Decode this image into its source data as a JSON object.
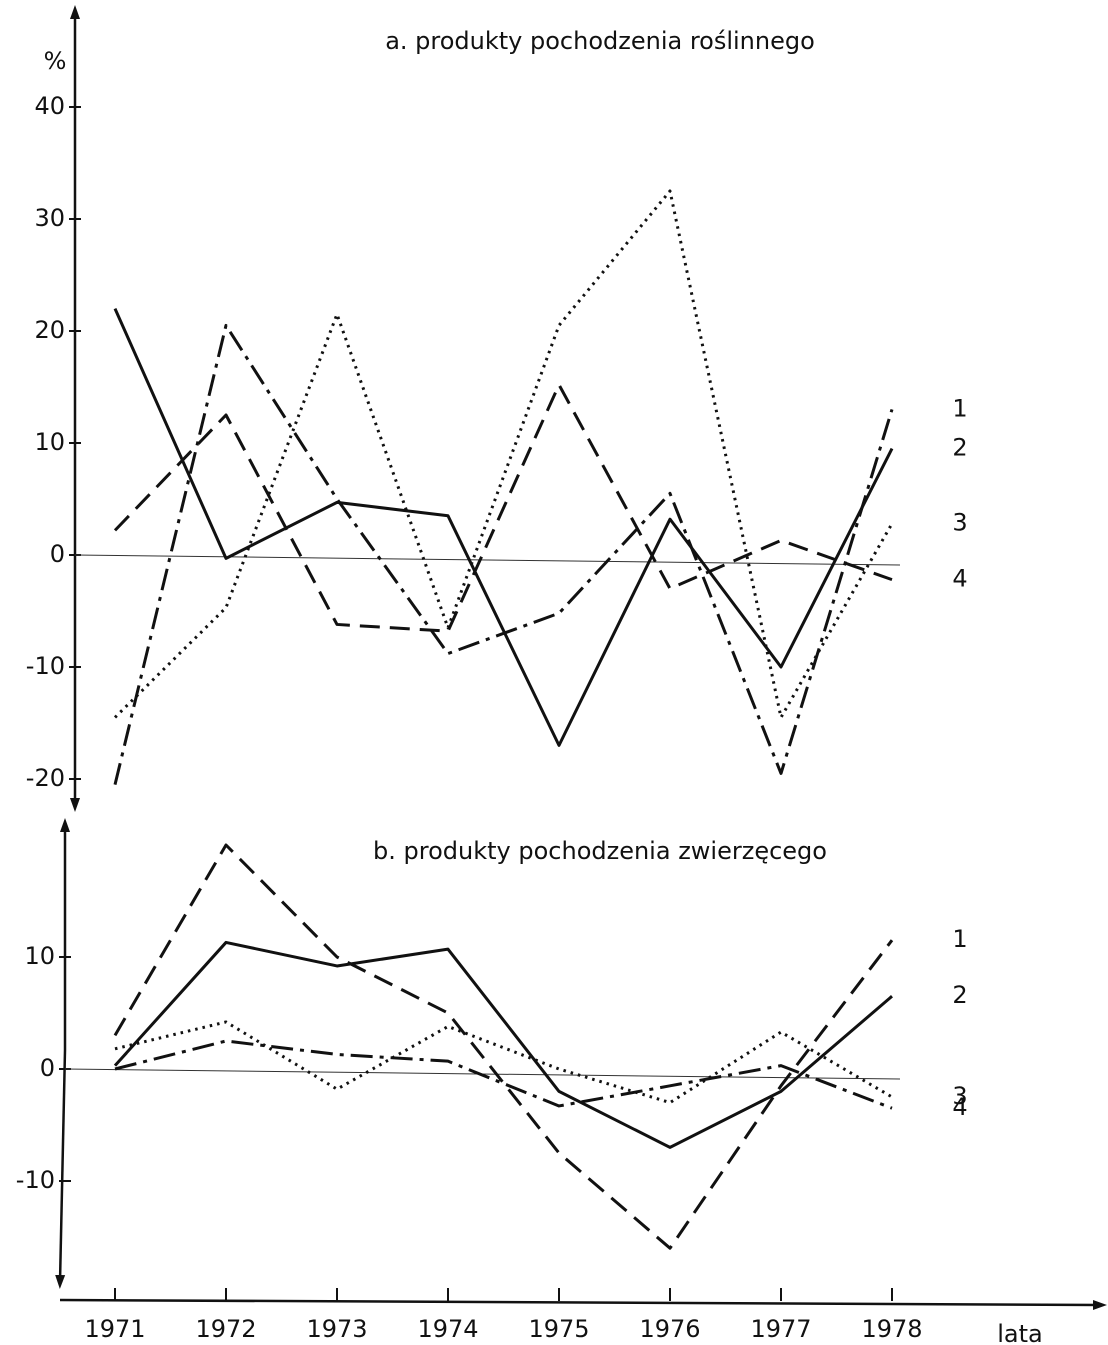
{
  "y_label": "%",
  "x_label": "lata",
  "chart_data": [
    {
      "type": "line",
      "title": "a. produkty pochodzenia roślinnego",
      "ylim": [
        -22,
        48
      ],
      "yticks": [
        -20,
        -10,
        0,
        10,
        20,
        30,
        40
      ],
      "series": [
        {
          "name": "1",
          "color": "#111111",
          "dash": "dashdot",
          "values": [
            -20.5,
            20.5,
            5,
            -8.8,
            -5.2,
            5.5,
            -19.5,
            13
          ]
        },
        {
          "name": "2",
          "color": "#111111",
          "dash": "solid",
          "values": [
            22,
            -0.3,
            4.7,
            3.5,
            -17,
            3.2,
            -10,
            9.5
          ]
        },
        {
          "name": "3",
          "color": "#111111",
          "dash": "dotted",
          "values": [
            -14.5,
            -4.7,
            21.5,
            -6.5,
            20.5,
            32.5,
            -14.5,
            2.8
          ]
        },
        {
          "name": "4",
          "color": "#111111",
          "dash": "dashed",
          "values": [
            2.2,
            12.5,
            -6.2,
            -6.8,
            15.2,
            -3,
            1.3,
            -2.2
          ]
        }
      ]
    },
    {
      "type": "line",
      "title": "b. produkty pochodzenia zwierzęcego",
      "categories": [
        "1971",
        "1972",
        "1973",
        "1974",
        "1975",
        "1976",
        "1977",
        "1978"
      ],
      "ylim": [
        -19,
        21.5
      ],
      "yticks": [
        -10,
        0,
        10
      ],
      "series": [
        {
          "name": "1",
          "color": "#111111",
          "dash": "dashed",
          "values": [
            3,
            20,
            10,
            5,
            -7.5,
            -16,
            -1.5,
            11.5
          ]
        },
        {
          "name": "2",
          "color": "#111111",
          "dash": "solid",
          "values": [
            0.3,
            11.3,
            9.2,
            10.7,
            -2,
            -7,
            -2,
            6.5
          ]
        },
        {
          "name": "3",
          "color": "#111111",
          "dash": "dotted",
          "values": [
            1.8,
            4.2,
            -1.8,
            3.8,
            0,
            -3,
            3.3,
            -2.5
          ]
        },
        {
          "name": "4",
          "color": "#111111",
          "dash": "dashdot",
          "values": [
            0,
            2.5,
            1.3,
            0.7,
            -3.3,
            -1.5,
            0.3,
            -3.5
          ]
        }
      ]
    }
  ]
}
